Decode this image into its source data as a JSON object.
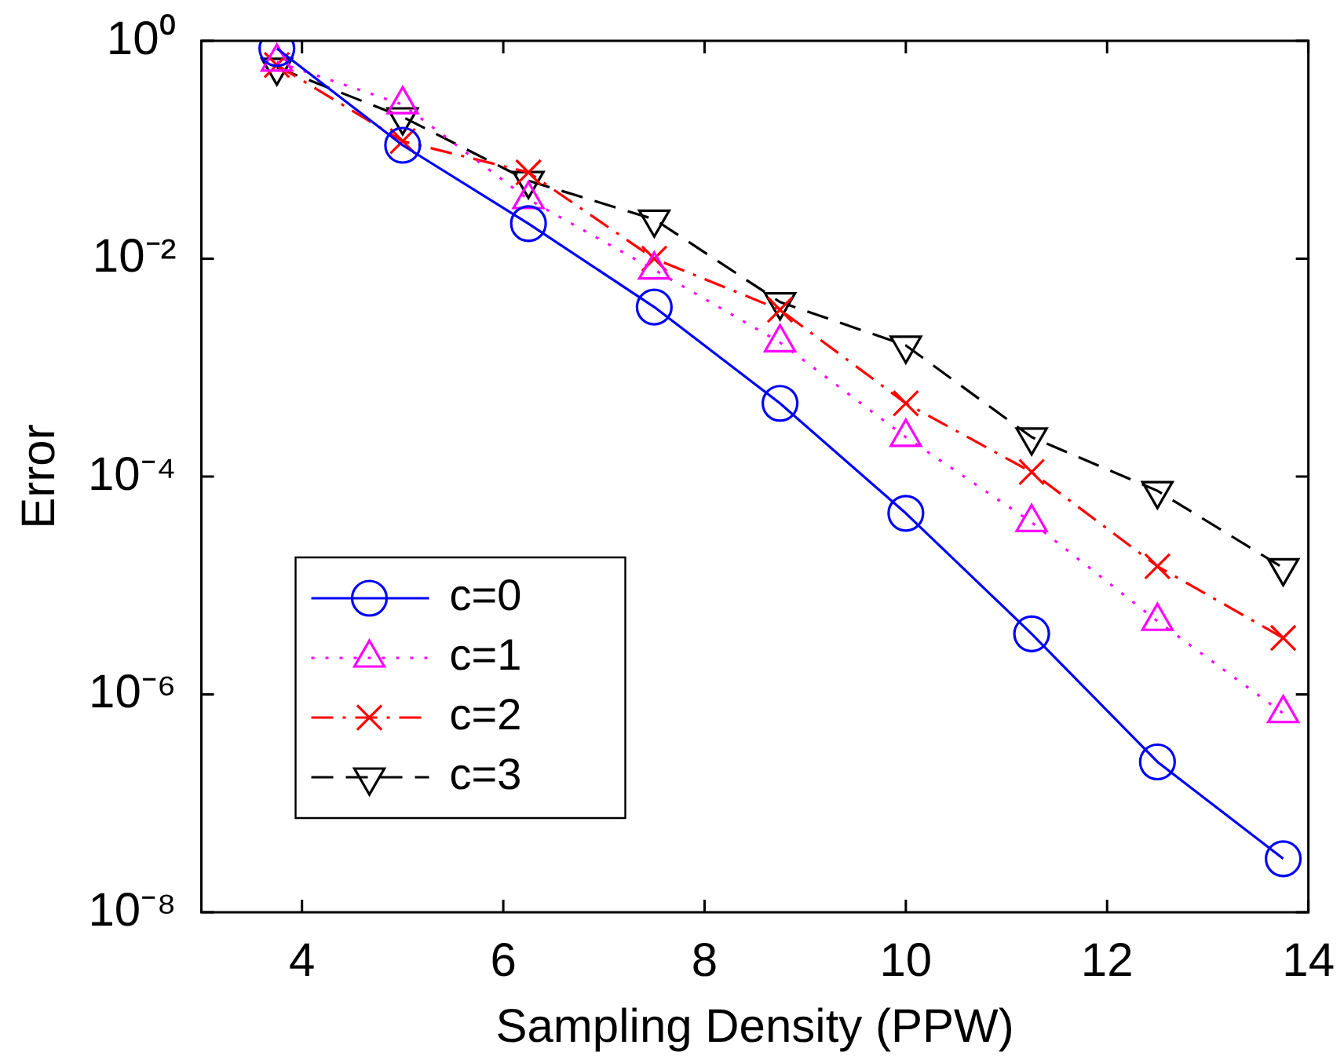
{
  "chart_data": {
    "type": "line",
    "xlabel": "Sampling Density (PPW)",
    "ylabel": "Error",
    "log": "y",
    "grid": false,
    "legend": "bottom left",
    "xlim": [
      3,
      14
    ],
    "xticks": [
      4,
      6,
      8,
      10,
      12,
      14
    ],
    "ylim": [
      1e-08,
      1
    ],
    "yticks": [
      {
        "value": 1,
        "label": "10⁰"
      },
      {
        "value": 0.01,
        "label": "10⁻²"
      },
      {
        "value": 0.0001,
        "label": "10⁻⁴"
      },
      {
        "value": 1e-06,
        "label": "10⁻⁶"
      },
      {
        "value": 1e-08,
        "label": "10⁻⁸"
      }
    ],
    "x": [
      3.75,
      5,
      6.25,
      7.5,
      8.75,
      10,
      11.25,
      12.5,
      13.75
    ],
    "series": [
      {
        "name": "c=0",
        "color": "#0000ff",
        "marker": "circle",
        "line_style": "solid",
        "values": [
          0.85,
          0.11,
          0.021,
          0.0036,
          0.00047,
          4.6e-05,
          3.6e-06,
          2.4e-07,
          3.1e-08
        ]
      },
      {
        "name": "c=1",
        "color": "#ff00ff",
        "marker": "triangle",
        "line_style": "dotted",
        "values": [
          0.64,
          0.26,
          0.035,
          0.0079,
          0.0017,
          0.00023,
          3.8e-05,
          4.7e-06,
          6.7e-07
        ]
      },
      {
        "name": "c=2",
        "color": "#ff0000",
        "marker": "cross",
        "line_style": "dashdot",
        "values": [
          0.6,
          0.12,
          0.062,
          0.01,
          0.0034,
          0.00047,
          0.00011,
          1.5e-05,
          3.3e-06
        ]
      },
      {
        "name": "c=3",
        "color": "#000000",
        "marker": "triangle_down",
        "line_style": "dashed",
        "values": [
          0.57,
          0.2,
          0.052,
          0.023,
          0.004,
          0.0016,
          0.00023,
          7.4e-05,
          1.45e-05
        ]
      }
    ]
  }
}
